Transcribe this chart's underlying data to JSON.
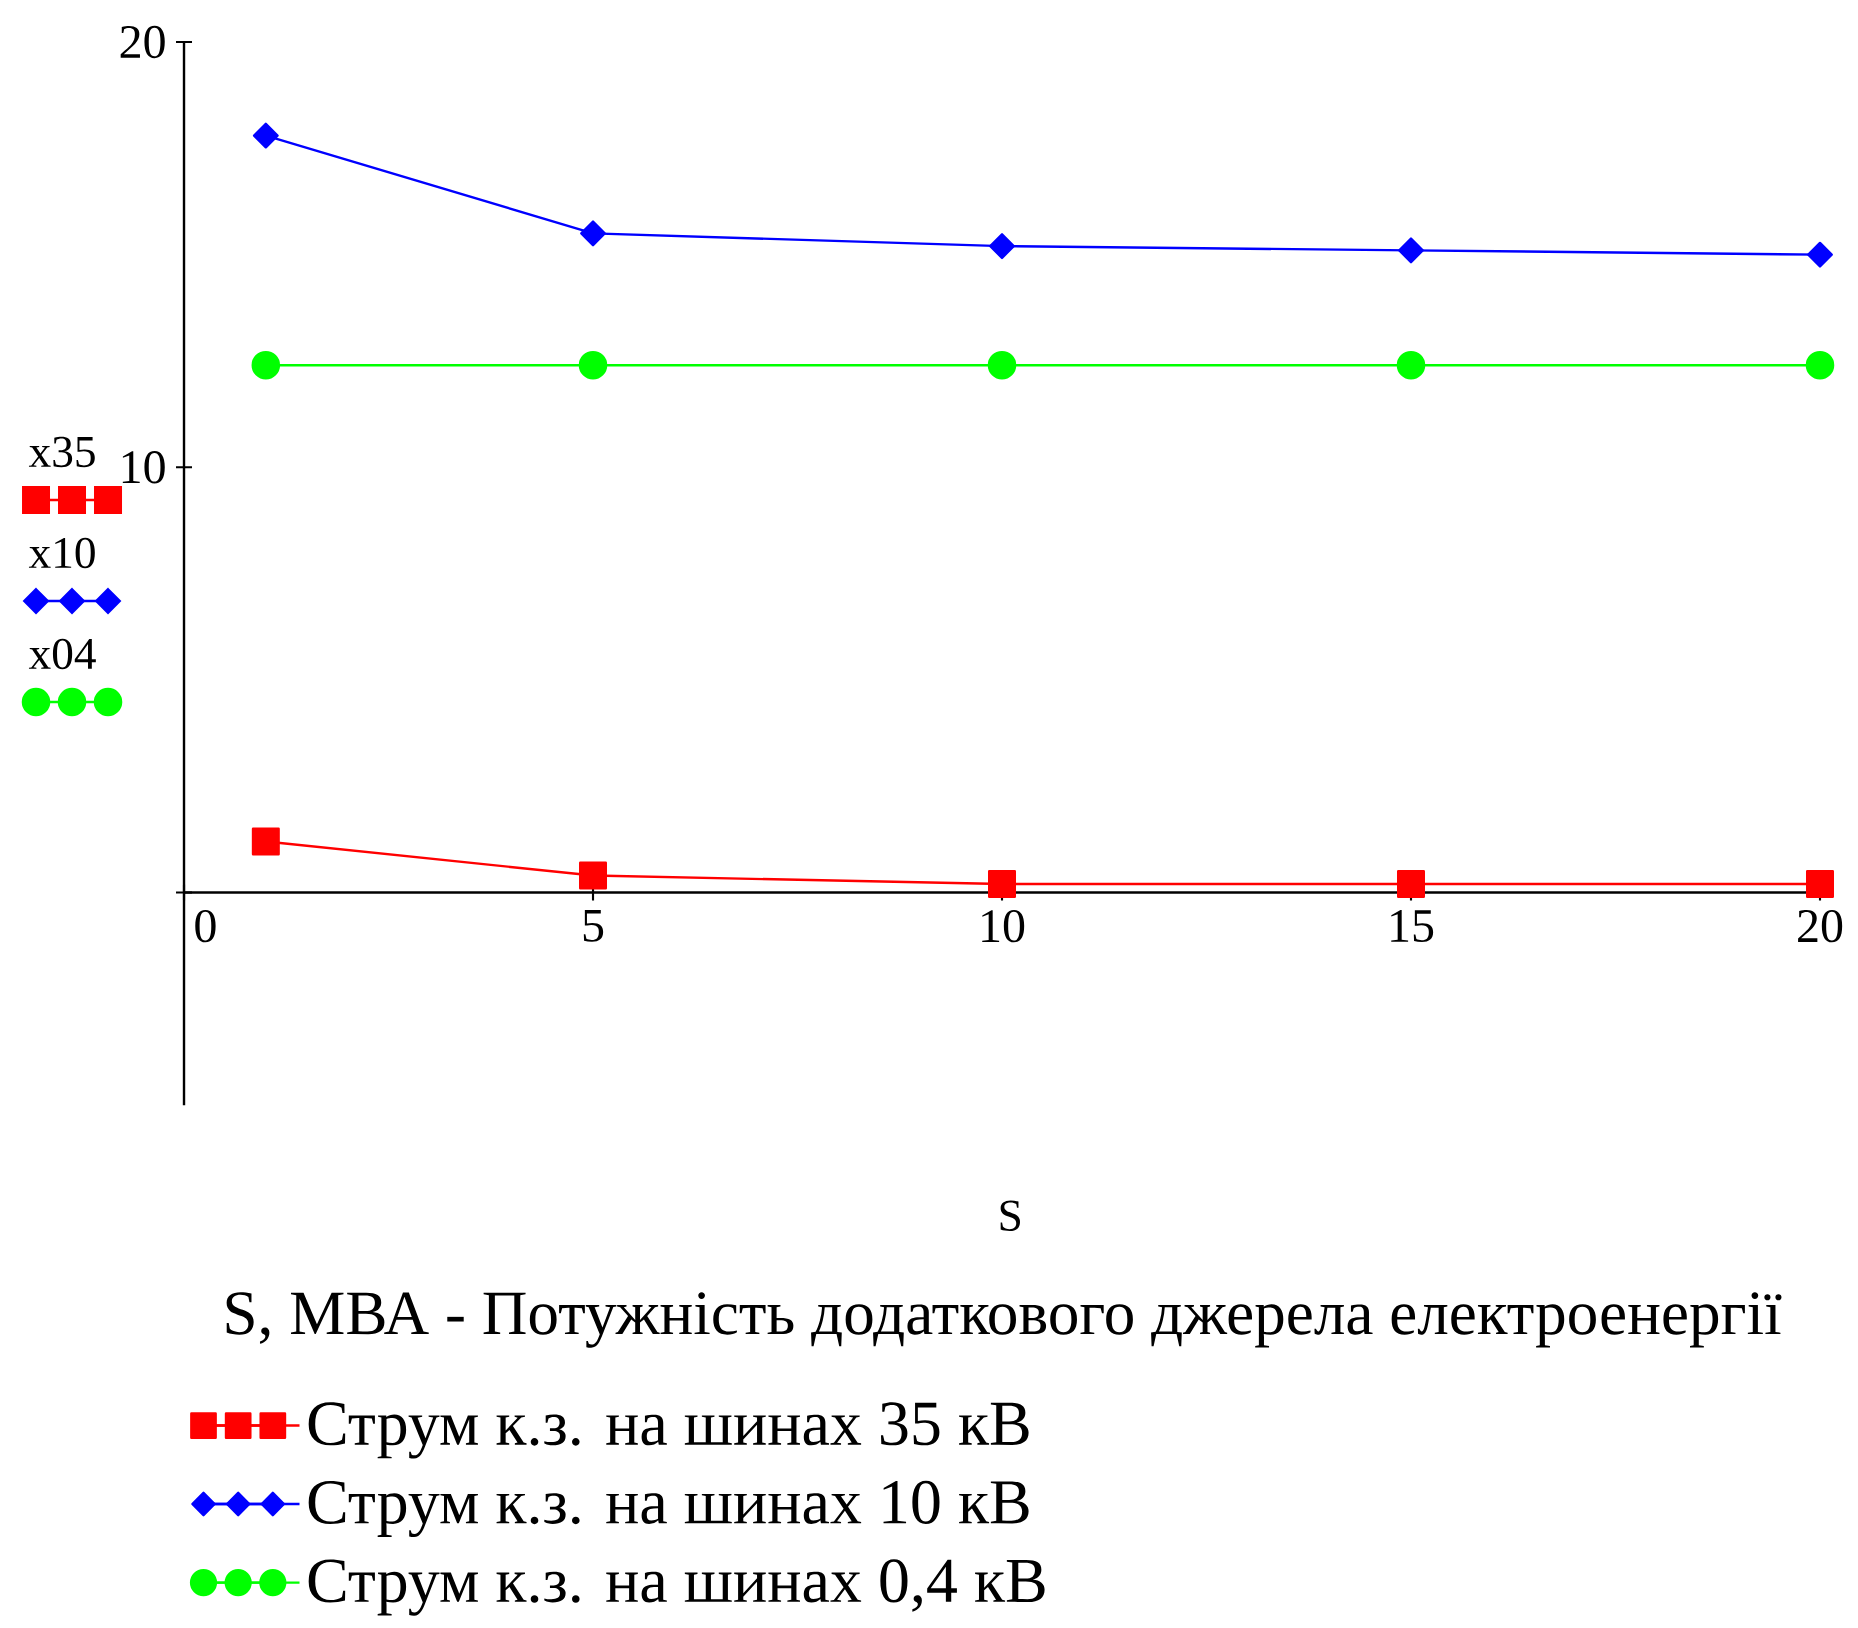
{
  "chart_data": {
    "type": "line",
    "xlabel": "S",
    "annotations": [
      "x35",
      "x10",
      "x04",
      "S, МВА - Потужність додаткового джерела електроенергії"
    ],
    "x": [
      1,
      5,
      10,
      15,
      20
    ],
    "series": [
      {
        "name": "Струм к.з. на шинах 35 кВ",
        "color": "#ff0000",
        "marker": "square",
        "values": [
          1.2,
          0.4,
          0.2,
          0.2,
          0.2
        ]
      },
      {
        "name": "Струм к.з. на шинах 10 кВ",
        "color": "#0000ff",
        "marker": "diamond",
        "values": [
          17.8,
          15.5,
          15.2,
          15.1,
          15.0
        ]
      },
      {
        "name": "Струм к.з. на шинах 0,4 кВ",
        "color": "#00ff00",
        "marker": "circle",
        "values": [
          12.4,
          12.4,
          12.4,
          12.4,
          12.4
        ]
      }
    ],
    "xlim": [
      0,
      20
    ],
    "ylim": [
      -5,
      20
    ],
    "xticks": [
      0,
      5,
      10,
      15,
      20
    ],
    "yticks": [
      {
        "value": 0,
        "label": null
      },
      10,
      20
    ],
    "legend": "bottom"
  }
}
